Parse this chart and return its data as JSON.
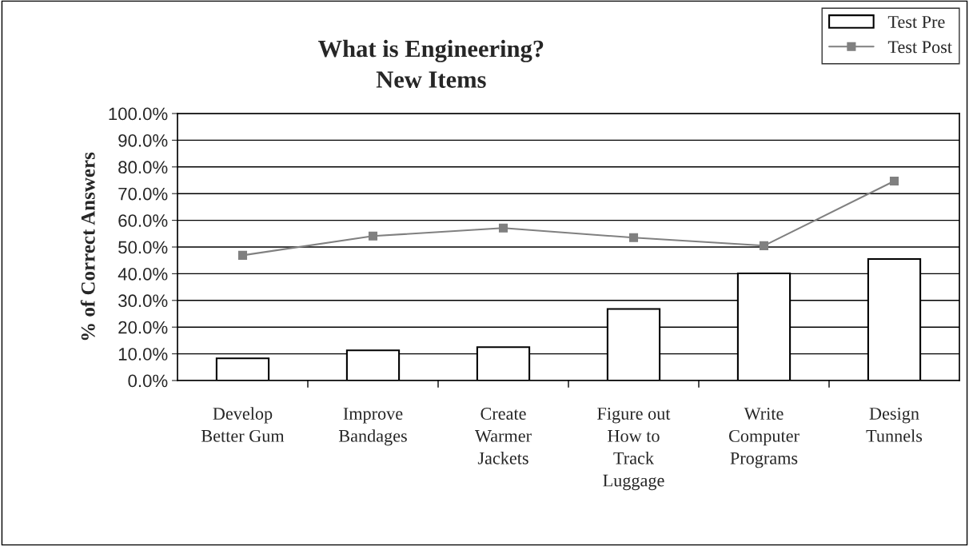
{
  "chart_data": {
    "type": "bar",
    "title": "What is Engineering?\nNew Items",
    "ylabel": "% of Correct Answers",
    "categories": [
      "Develop\nBetter Gum",
      "Improve\nBandages",
      "Create\nWarmer\nJackets",
      "Figure out\nHow to\nTrack\nLuggage",
      "Write\nComputer\nPrograms",
      "Design\nTunnels"
    ],
    "series": [
      {
        "name": "Test Pre",
        "color": "#ffffff",
        "values": [
          8.3,
          11.3,
          12.5,
          26.8,
          40.1,
          45.5
        ]
      },
      {
        "name": "Test Post",
        "type": "line",
        "color": "#808080",
        "marker": "square",
        "values": [
          46.9,
          54.1,
          57.1,
          53.5,
          50.5,
          74.7
        ]
      }
    ],
    "ylim": [
      0,
      100
    ],
    "yticks": [
      {
        "value": 0,
        "label": "0.0%"
      },
      {
        "value": 10,
        "label": "10.0%"
      },
      {
        "value": 20,
        "label": "20.0%"
      },
      {
        "value": 30,
        "label": "30.0%"
      },
      {
        "value": 40,
        "label": "40.0%"
      },
      {
        "value": 50,
        "label": "50.0%"
      },
      {
        "value": 60,
        "label": "60.0%"
      },
      {
        "value": 70,
        "label": "70.0%"
      },
      {
        "value": 80,
        "label": "80.0%"
      },
      {
        "value": 90,
        "label": "90.0%"
      },
      {
        "value": 100,
        "label": "100.0%"
      }
    ],
    "grid": "y",
    "legend": "top right"
  }
}
